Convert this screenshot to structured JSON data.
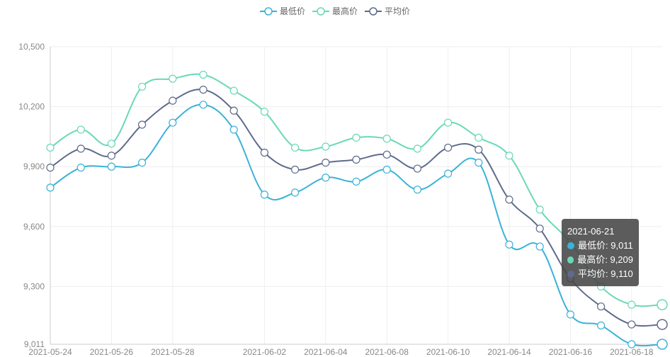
{
  "legend": {
    "items": [
      {
        "label": "最低价",
        "color": "#3bb2d8"
      },
      {
        "label": "最高价",
        "color": "#6ad8b8"
      },
      {
        "label": "平均价",
        "color": "#5e6b8c"
      }
    ]
  },
  "tooltip": {
    "date": "2021-06-21",
    "rows": [
      {
        "label": "最低价: 9,011",
        "color": "#3bb2d8"
      },
      {
        "label": "最高价: 9,209",
        "color": "#6ad8b8"
      },
      {
        "label": "平均价: 9,110",
        "color": "#5e6b8c"
      }
    ]
  },
  "chart_data": {
    "type": "line",
    "x": [
      "2021-05-24",
      "2021-05-25",
      "2021-05-26",
      "2021-05-27",
      "2021-05-28",
      "2021-05-31",
      "2021-06-01",
      "2021-06-02",
      "2021-06-03",
      "2021-06-04",
      "2021-06-07",
      "2021-06-08",
      "2021-06-09",
      "2021-06-10",
      "2021-06-11",
      "2021-06-14",
      "2021-06-15",
      "2021-06-16",
      "2021-06-17",
      "2021-06-18",
      "2021-06-21"
    ],
    "x_tick_labels": [
      "2021-05-24",
      "2021-05-26",
      "2021-05-28",
      "2021-06-02",
      "2021-06-04",
      "2021-06-08",
      "2021-06-10",
      "2021-06-14",
      "2021-06-16",
      "2021-06-18"
    ],
    "y_tick_labels": [
      "10,500",
      "10,200",
      "9,900",
      "9,600",
      "9,300",
      "9,011"
    ],
    "ylim": [
      9011,
      10500
    ],
    "grid": true,
    "legend_position": "top-center",
    "series": [
      {
        "name": "最低价",
        "color": "#3bb2d8",
        "values": [
          9795,
          9895,
          9900,
          9920,
          10120,
          10210,
          10085,
          9760,
          9770,
          9845,
          9825,
          9885,
          9785,
          9865,
          9920,
          9510,
          9500,
          9160,
          9105,
          9011,
          9011
        ]
      },
      {
        "name": "最高价",
        "color": "#6ad8b8",
        "values": [
          9995,
          10085,
          10015,
          10300,
          10340,
          10360,
          10280,
          10175,
          9995,
          10000,
          10045,
          10040,
          9990,
          10120,
          10045,
          9955,
          9685,
          9520,
          9300,
          9209,
          9209
        ]
      },
      {
        "name": "平均价",
        "color": "#5e6b8c",
        "values": [
          9895,
          9990,
          9955,
          10110,
          10230,
          10285,
          10180,
          9970,
          9885,
          9920,
          9935,
          9960,
          9890,
          9995,
          9985,
          9735,
          9590,
          9340,
          9200,
          9110,
          9110
        ]
      }
    ]
  }
}
